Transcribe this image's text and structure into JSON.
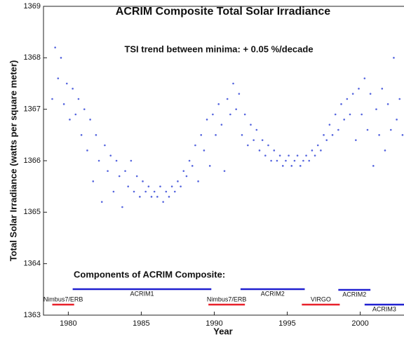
{
  "chart_data": {
    "type": "scatter",
    "title": "ACRIM Composite Total Solar Irradiance",
    "annotation": "TSI trend between minima: + 0.05 %/decade",
    "components_title": "Components of ACRIM Composite:",
    "xlabel": "Year",
    "ylabel": "Total Solar Irradiance (watts per square meter)",
    "color": "#2b3fd6",
    "xlim": [
      1978.3,
      2003
    ],
    "ylim": [
      1363,
      1369
    ],
    "xticks": [
      1980,
      1985,
      1990,
      1995,
      2000
    ],
    "yticks": [
      1363,
      1364,
      1365,
      1366,
      1367,
      1368,
      1369
    ],
    "x": [
      1978.9,
      1979.1,
      1979.3,
      1979.5,
      1979.7,
      1979.9,
      1980.1,
      1980.3,
      1980.5,
      1980.7,
      1980.9,
      1981.1,
      1981.3,
      1981.5,
      1981.7,
      1981.9,
      1982.1,
      1982.3,
      1982.5,
      1982.7,
      1982.9,
      1983.1,
      1983.3,
      1983.5,
      1983.7,
      1983.9,
      1984.1,
      1984.3,
      1984.5,
      1984.7,
      1984.9,
      1985.1,
      1985.3,
      1985.5,
      1985.7,
      1985.9,
      1986.1,
      1986.3,
      1986.5,
      1986.7,
      1986.9,
      1987.1,
      1987.3,
      1987.5,
      1987.7,
      1987.9,
      1988.1,
      1988.3,
      1988.5,
      1988.7,
      1988.9,
      1989.1,
      1989.3,
      1989.5,
      1989.7,
      1989.9,
      1990.1,
      1990.3,
      1990.5,
      1990.7,
      1990.9,
      1991.1,
      1991.3,
      1991.5,
      1991.7,
      1991.9,
      1992.1,
      1992.3,
      1992.5,
      1992.7,
      1992.9,
      1993.1,
      1993.3,
      1993.5,
      1993.7,
      1993.9,
      1994.1,
      1994.3,
      1994.5,
      1994.7,
      1994.9,
      1995.1,
      1995.3,
      1995.5,
      1995.7,
      1995.9,
      1996.1,
      1996.3,
      1996.5,
      1996.7,
      1996.9,
      1997.1,
      1997.3,
      1997.5,
      1997.7,
      1997.9,
      1998.1,
      1998.3,
      1998.5,
      1998.7,
      1998.9,
      1999.1,
      1999.3,
      1999.5,
      1999.7,
      1999.9,
      2000.1,
      2000.3,
      2000.5,
      2000.7,
      2000.9,
      2001.1,
      2001.3,
      2001.5,
      2001.7,
      2001.9,
      2002.1,
      2002.3,
      2002.5,
      2002.7,
      2002.9
    ],
    "values": [
      1367.2,
      1368.2,
      1367.6,
      1368.0,
      1367.1,
      1367.5,
      1366.8,
      1367.4,
      1366.9,
      1367.2,
      1366.5,
      1367.0,
      1366.2,
      1366.8,
      1365.6,
      1366.5,
      1366.0,
      1365.2,
      1366.3,
      1365.8,
      1366.1,
      1365.4,
      1366.0,
      1365.7,
      1365.1,
      1365.8,
      1365.5,
      1366.0,
      1365.4,
      1365.7,
      1365.3,
      1365.6,
      1365.4,
      1365.5,
      1365.3,
      1365.4,
      1365.3,
      1365.5,
      1365.2,
      1365.4,
      1365.3,
      1365.5,
      1365.4,
      1365.6,
      1365.5,
      1365.8,
      1365.7,
      1366.0,
      1365.9,
      1366.3,
      1365.6,
      1366.5,
      1366.2,
      1366.8,
      1365.9,
      1366.9,
      1366.5,
      1367.1,
      1366.7,
      1365.8,
      1367.2,
      1366.9,
      1367.5,
      1367.0,
      1367.3,
      1366.5,
      1366.9,
      1366.3,
      1366.7,
      1366.4,
      1366.6,
      1366.2,
      1366.4,
      1366.1,
      1366.3,
      1366.0,
      1366.2,
      1366.0,
      1366.1,
      1365.9,
      1366.0,
      1366.1,
      1365.9,
      1366.0,
      1366.1,
      1365.9,
      1366.0,
      1366.1,
      1366.0,
      1366.2,
      1366.1,
      1366.3,
      1366.2,
      1366.5,
      1366.4,
      1366.7,
      1366.5,
      1366.9,
      1366.6,
      1367.1,
      1366.8,
      1367.2,
      1366.9,
      1367.3,
      1366.4,
      1367.4,
      1366.9,
      1367.6,
      1366.6,
      1367.3,
      1365.9,
      1367.0,
      1366.5,
      1367.4,
      1366.2,
      1367.1,
      1366.6,
      1368.0,
      1366.8,
      1367.2,
      1366.5
    ],
    "components": [
      {
        "name": "Nimbus7/ERB",
        "start": 1978.9,
        "end": 1980.4,
        "color": "#e8202a"
      },
      {
        "name": "ACRIM1",
        "start": 1980.3,
        "end": 1989.8,
        "color": "#2020d0"
      },
      {
        "name": "Nimbus7/ERB",
        "start": 1989.6,
        "end": 1992.1,
        "color": "#e8202a"
      },
      {
        "name": "ACRIM2",
        "start": 1991.8,
        "end": 1996.2,
        "color": "#2020d0"
      },
      {
        "name": "VIRGO",
        "start": 1996.0,
        "end": 1998.6,
        "color": "#e8202a"
      },
      {
        "name": "ACRIM2",
        "start": 1998.5,
        "end": 2000.7,
        "color": "#2020d0"
      },
      {
        "name": "ACRIM3",
        "start": 2000.3,
        "end": 2003,
        "color": "#2020d0"
      }
    ]
  }
}
